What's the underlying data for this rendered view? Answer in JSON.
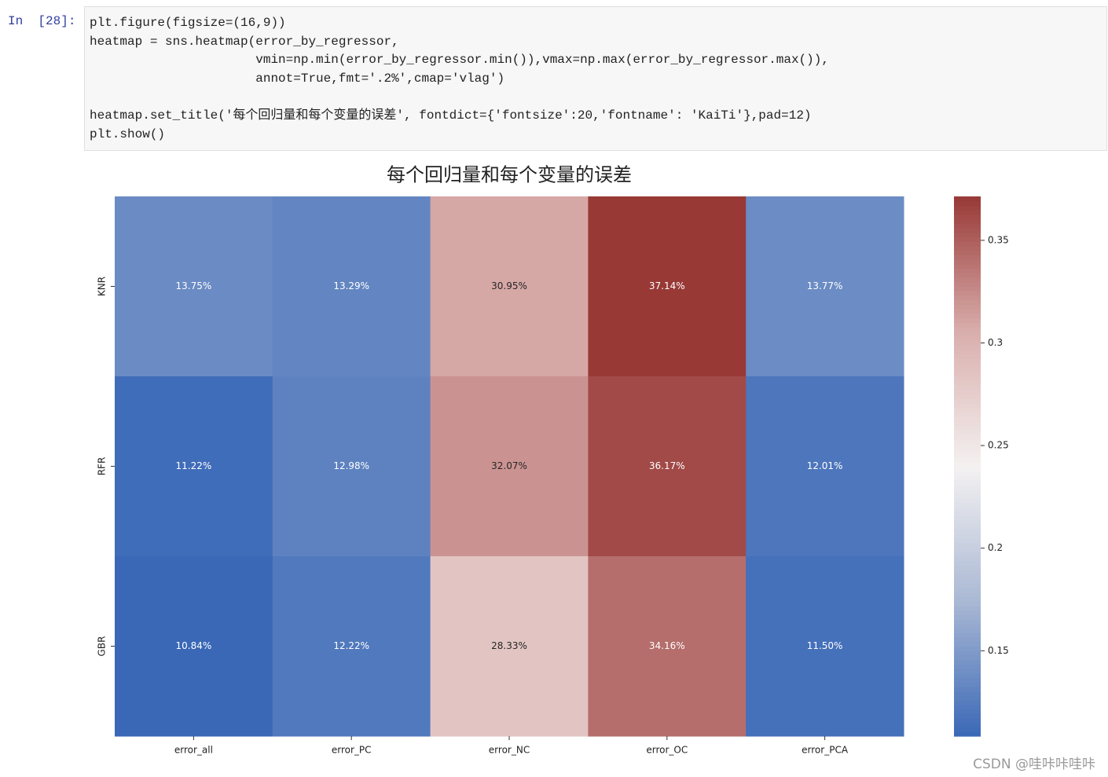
{
  "cell": {
    "prompt": "In  [28]:",
    "code": [
      "plt.figure(figsize=(16,9))",
      "heatmap = sns.heatmap(error_by_regressor,",
      "                      vmin=np.min(error_by_regressor.min()),vmax=np.max(error_by_regressor.max()),",
      "                      annot=True,fmt='.2%',cmap='vlag')",
      "",
      "heatmap.set_title('每个回归量和每个变量的误差', fontdict={'fontsize':20,'fontname': 'KaiTi'},pad=12)",
      "plt.show()"
    ]
  },
  "chart_data": {
    "type": "heatmap",
    "title": "每个回归量和每个变量的误差",
    "x": [
      "error_all",
      "error_PC",
      "error_NC",
      "error_OC",
      "error_PCA"
    ],
    "y": [
      "KNR",
      "RFR",
      "GBR"
    ],
    "values": [
      [
        0.1375,
        0.1329,
        0.3095,
        0.3714,
        0.1377
      ],
      [
        0.1122,
        0.1298,
        0.3207,
        0.3617,
        0.1201
      ],
      [
        0.1084,
        0.1222,
        0.2833,
        0.3416,
        0.115
      ]
    ],
    "value_labels": [
      [
        "13.75%",
        "13.29%",
        "30.95%",
        "37.14%",
        "13.77%"
      ],
      [
        "11.22%",
        "12.98%",
        "32.07%",
        "36.17%",
        "12.01%"
      ],
      [
        "10.84%",
        "12.22%",
        "28.33%",
        "34.16%",
        "11.50%"
      ]
    ],
    "colorscale": [
      "#3a68b7",
      "#a9b8d4",
      "#f4f1f1",
      "#d9aeac",
      "#983936"
    ],
    "clim": [
      0.1084,
      0.3714
    ],
    "cticks": [
      0.15,
      0.2,
      0.25,
      0.3,
      0.35
    ]
  },
  "watermark": "CSDN @哇咔咔哇咔"
}
